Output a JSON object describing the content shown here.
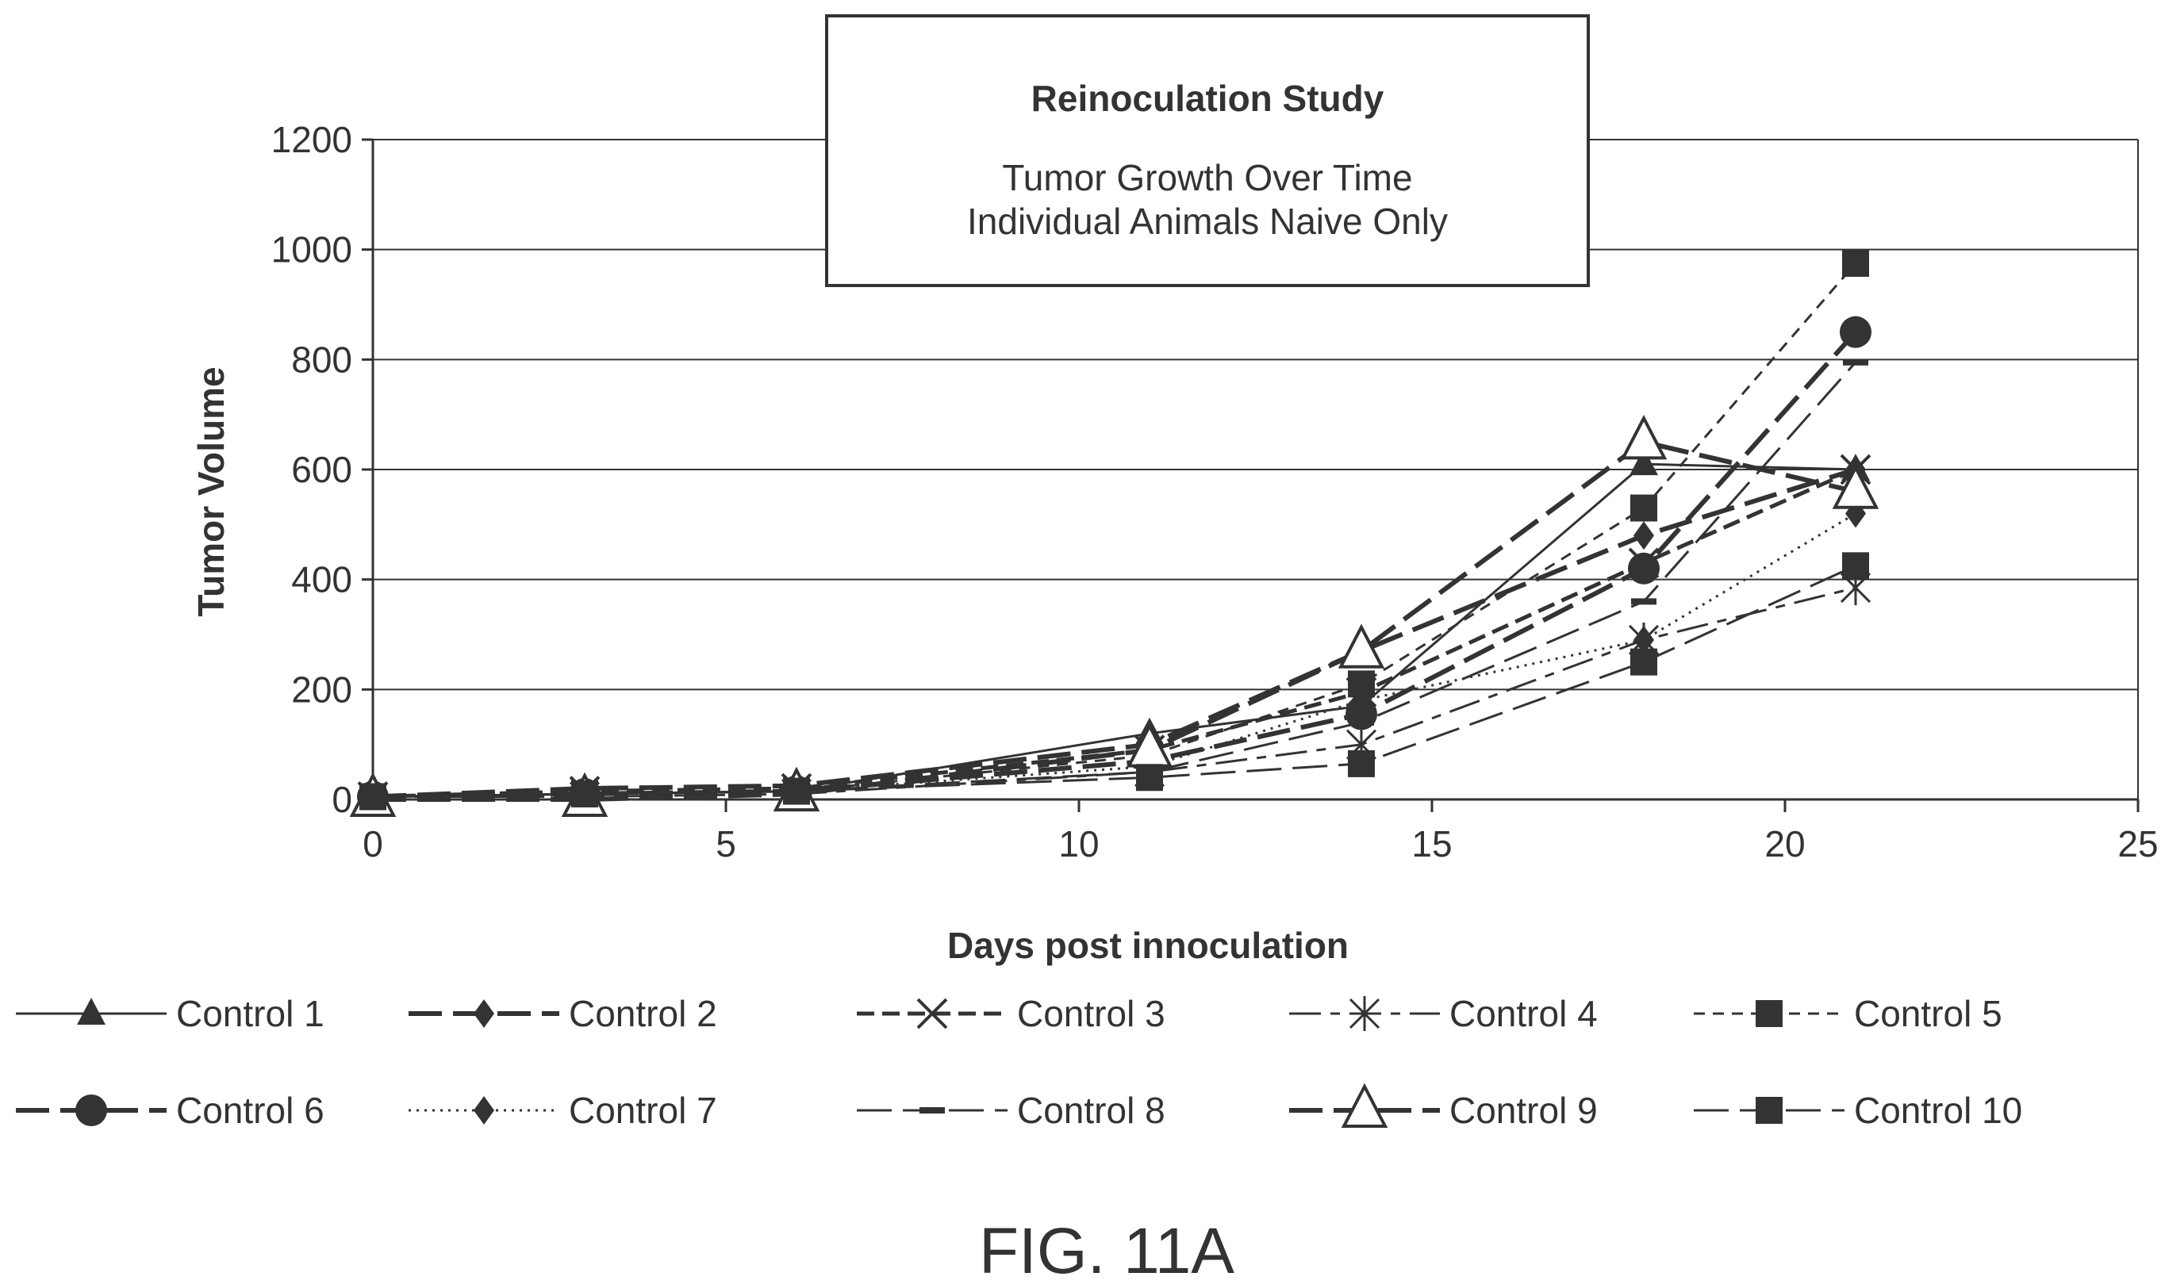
{
  "figure_label": "FIG. 11A",
  "chart_data": {
    "type": "line",
    "title": "Reinoculation Study",
    "subtitle_lines": [
      "Tumor Growth Over Time",
      "Individual Animals Naive Only"
    ],
    "xlabel": "Days post innoculation",
    "ylabel": "Tumor Volume",
    "xlim": [
      0,
      25
    ],
    "ylim": [
      0,
      1200
    ],
    "x_ticks": [
      0,
      5,
      10,
      15,
      20,
      25
    ],
    "y_ticks": [
      0,
      200,
      400,
      600,
      800,
      1000,
      1200
    ],
    "grid": "horizontal",
    "legend_position": "bottom",
    "x": [
      0,
      3,
      6,
      11,
      14,
      18,
      21
    ],
    "series": [
      {
        "name": "Control 1",
        "values": [
          5,
          10,
          15,
          120,
          170,
          610,
          600
        ],
        "marker": "triangle-filled",
        "dash": "solid",
        "width": 3
      },
      {
        "name": "Control 2",
        "values": [
          5,
          20,
          25,
          100,
          270,
          480,
          600
        ],
        "marker": "diamond",
        "dash": "long-dash",
        "width": 6
      },
      {
        "name": "Control 3",
        "values": [
          5,
          15,
          20,
          90,
          195,
          430,
          600
        ],
        "marker": "x",
        "dash": "dash",
        "width": 5
      },
      {
        "name": "Control 4",
        "values": [
          5,
          5,
          10,
          50,
          100,
          290,
          385
        ],
        "marker": "asterisk",
        "dash": "long-short",
        "width": 3
      },
      {
        "name": "Control 5",
        "values": [
          5,
          10,
          15,
          80,
          210,
          530,
          975
        ],
        "marker": "square",
        "dash": "short-dash",
        "width": 3
      },
      {
        "name": "Control 6",
        "values": [
          5,
          10,
          15,
          70,
          155,
          420,
          850
        ],
        "marker": "circle",
        "dash": "long-dash",
        "width": 6
      },
      {
        "name": "Control 7",
        "values": [
          5,
          10,
          15,
          60,
          180,
          290,
          520
        ],
        "marker": "diamond",
        "dash": "dotted",
        "width": 3
      },
      {
        "name": "Control 8",
        "values": [
          5,
          10,
          15,
          50,
          140,
          360,
          795
        ],
        "marker": "dash",
        "dash": "long-dash-thin",
        "width": 3
      },
      {
        "name": "Control 9",
        "values": [
          0,
          0,
          10,
          90,
          270,
          650,
          560
        ],
        "marker": "triangle-open",
        "dash": "long-dash",
        "width": 6
      },
      {
        "name": "Control 10",
        "values": [
          5,
          10,
          15,
          40,
          65,
          250,
          425
        ],
        "marker": "square",
        "dash": "long-dash-thin",
        "width": 3
      }
    ]
  }
}
